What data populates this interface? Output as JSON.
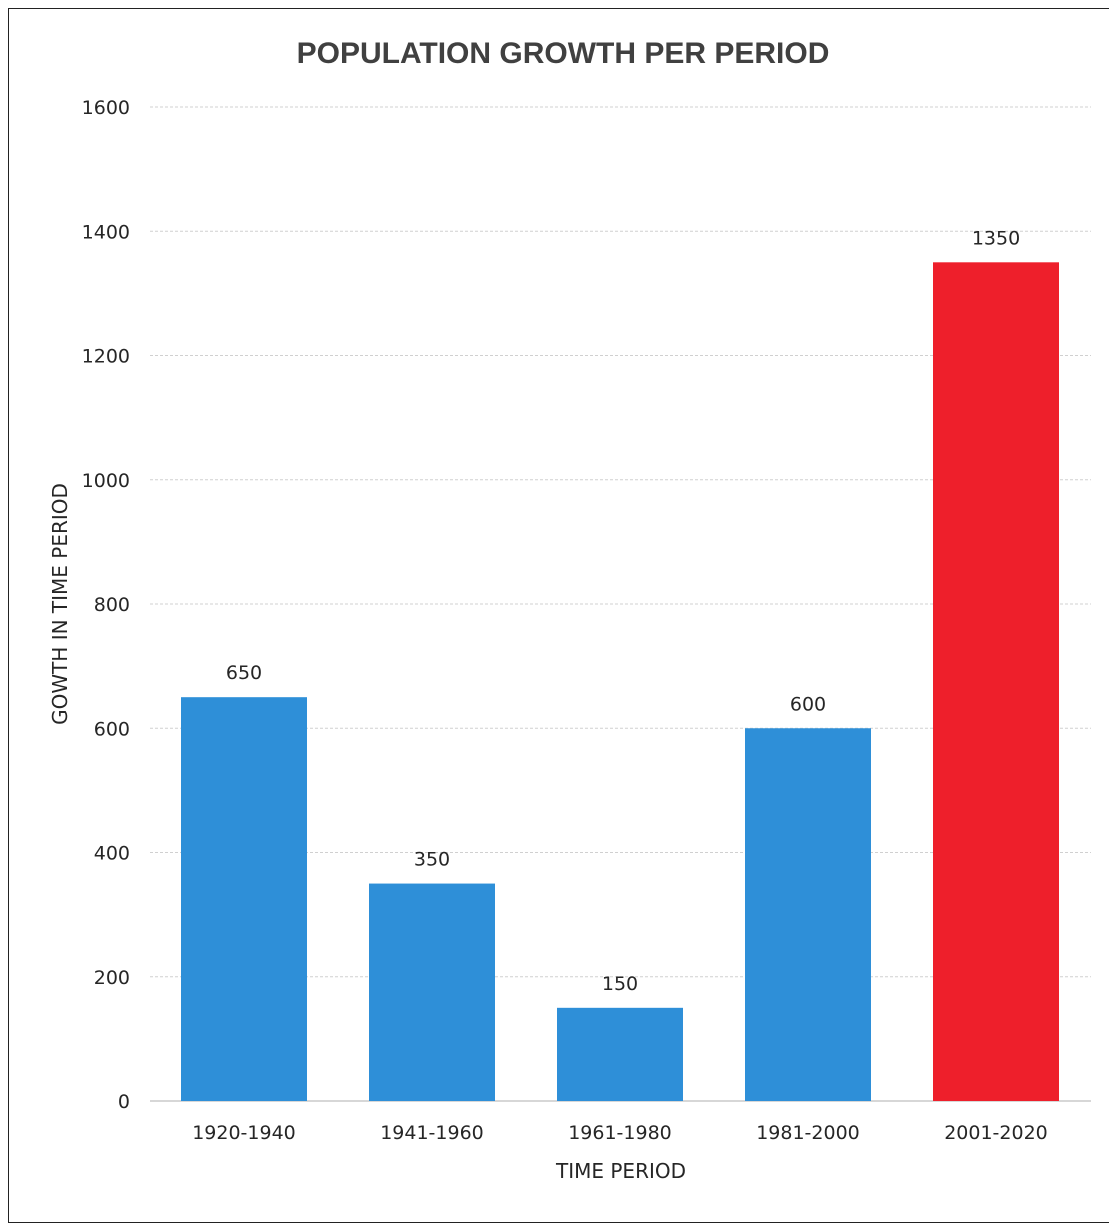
{
  "chart_data": {
    "type": "bar",
    "title": "POPULATION GROWTH PER PERIOD",
    "xlabel": "TIME PERIOD",
    "ylabel": "GOWTH IN TIME PERIOD",
    "categories": [
      "1920-1940",
      "1941-1960",
      "1961-1980",
      "1981-2000",
      "2001-2020"
    ],
    "values": [
      650,
      350,
      150,
      600,
      1350
    ],
    "data_labels": [
      "650",
      "350",
      "150",
      "600",
      "1350"
    ],
    "bar_colors": [
      "#2e8fd8",
      "#2e8fd8",
      "#2e8fd8",
      "#2e8fd8",
      "#ee1f2b"
    ],
    "ylim": [
      0,
      1600
    ],
    "yticks": [
      0,
      200,
      400,
      600,
      800,
      1000,
      1200,
      1400,
      1600
    ],
    "ytick_labels": [
      "0",
      "200",
      "400",
      "600",
      "800",
      "1000",
      "1200",
      "1400",
      "1600"
    ],
    "grid": true,
    "legend": "none"
  }
}
